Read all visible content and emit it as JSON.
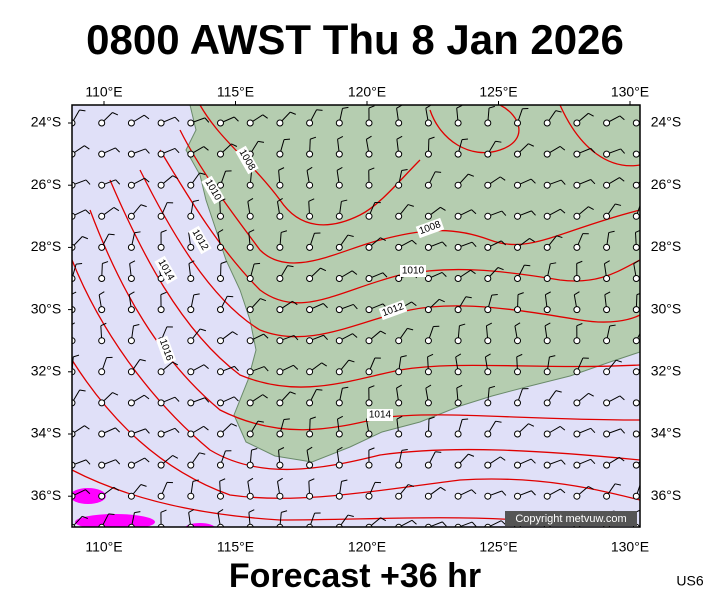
{
  "header": {
    "title": "0800 AWST Thu 8 Jan 2026"
  },
  "footer": {
    "subtitle": "Forecast +36 hr",
    "code": "US6"
  },
  "axes": {
    "longitudes": [
      "110°E",
      "115°E",
      "120°E",
      "125°E",
      "130°E"
    ],
    "latitudes": [
      "24°S",
      "26°S",
      "28°S",
      "30°S",
      "32°S",
      "34°S",
      "36°S"
    ]
  },
  "isobars": [
    "1008",
    "1010",
    "1012",
    "1014",
    "1016",
    "1008",
    "1010",
    "1012",
    "1014"
  ],
  "copyright": "Copyright metvuw.com"
}
